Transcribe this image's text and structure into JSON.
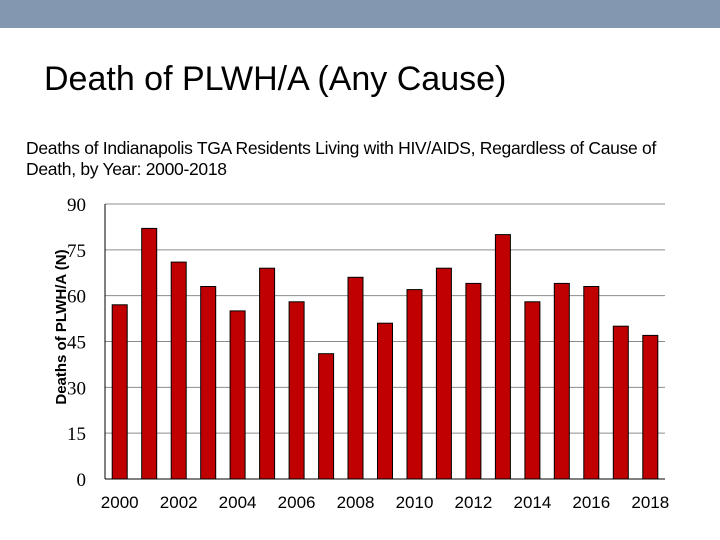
{
  "slide": {
    "title": "Death of PLWH/A (Any Cause)",
    "band_color": "#8497b0"
  },
  "chart_data": {
    "type": "bar",
    "title": "Deaths of Indianapolis TGA Residents Living with HIV/AIDS, Regardless of Cause of Death, by Year: 2000-2018",
    "xlabel": "",
    "ylabel": "Deaths of PLWH/A (N)",
    "ylim": [
      0,
      90
    ],
    "yticks": [
      0,
      15,
      30,
      45,
      60,
      75,
      90
    ],
    "grid": true,
    "categories": [
      "2000",
      "2001",
      "2002",
      "2003",
      "2004",
      "2005",
      "2006",
      "2007",
      "2008",
      "2009",
      "2010",
      "2011",
      "2012",
      "2013",
      "2014",
      "2015",
      "2016",
      "2017",
      "2018"
    ],
    "xtick_labels": [
      "2000",
      "2002",
      "2004",
      "2006",
      "2008",
      "2010",
      "2012",
      "2014",
      "2016",
      "2018"
    ],
    "values": [
      57,
      82,
      71,
      63,
      55,
      69,
      58,
      41,
      66,
      51,
      62,
      69,
      64,
      80,
      58,
      64,
      63,
      50,
      47
    ],
    "bar_color": "#c00000",
    "bar_edge_color": "#000000"
  }
}
